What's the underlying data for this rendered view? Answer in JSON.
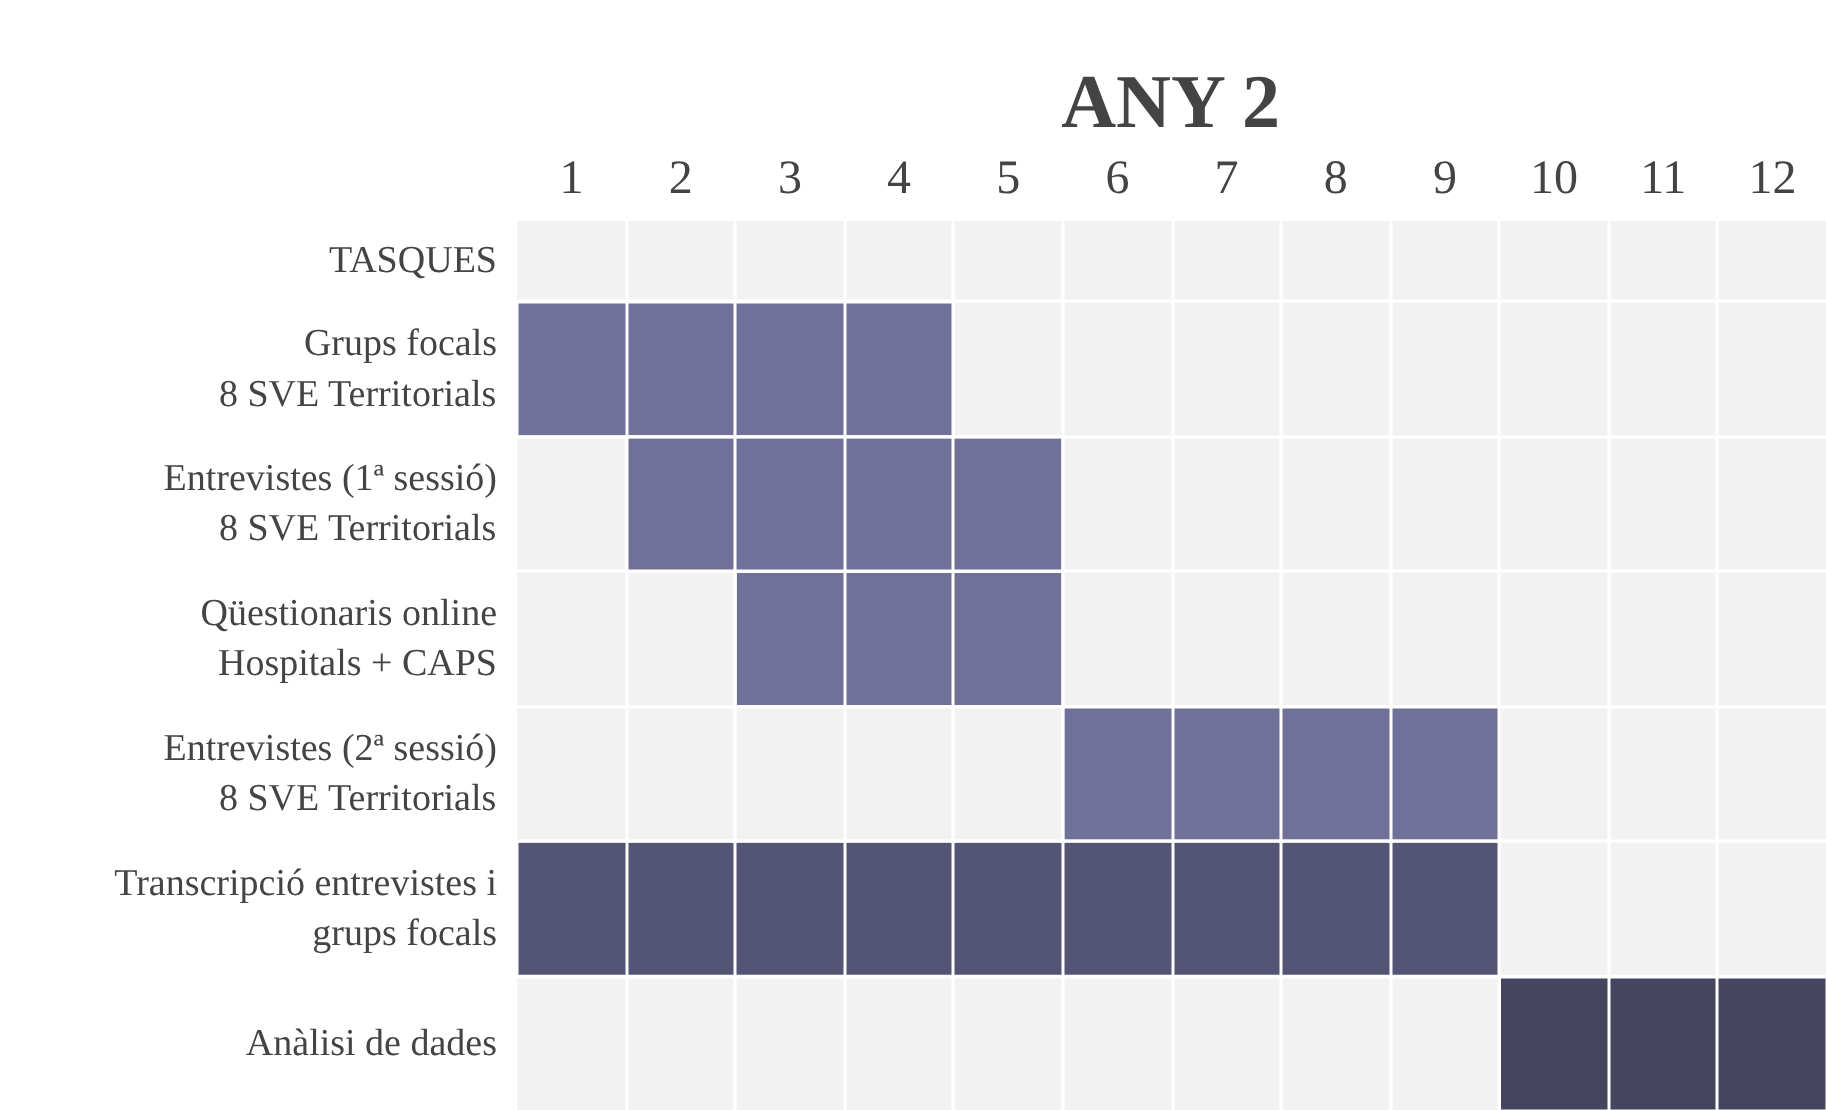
{
  "chart_data": {
    "type": "bar",
    "orientation": "horizontal",
    "title": "ANY 2",
    "ylabel": "TASQUES",
    "categories": [
      "Grups focals\n8 SVE Territorials",
      "Entrevistes (1ª sessió)\n8 SVE Territorials",
      "Qüestionaris online\nHospitals + CAPS",
      "Entrevistes (2ª sessió)\n8 SVE Territorials",
      "Transcripció entrevistes i\ngrups focals",
      "Anàlisi de dades"
    ],
    "base": [
      0,
      1,
      2,
      5,
      0,
      9
    ],
    "values": [
      4,
      4,
      3,
      4,
      9,
      3
    ],
    "colors": [
      "#6f7199",
      "#6f7199",
      "#6f7199",
      "#6f7199",
      "#545475",
      "#45455f"
    ],
    "xlim": [
      0,
      12
    ],
    "xticks": [
      {
        "value": 0.5,
        "label": "1"
      },
      {
        "value": 1.5,
        "label": "2"
      },
      {
        "value": 2.5,
        "label": "3"
      },
      {
        "value": 3.5,
        "label": "4"
      },
      {
        "value": 4.5,
        "label": "5"
      },
      {
        "value": 5.5,
        "label": "6"
      },
      {
        "value": 6.5,
        "label": "7"
      },
      {
        "value": 7.5,
        "label": "8"
      },
      {
        "value": 8.5,
        "label": "9"
      },
      {
        "value": 9.5,
        "label": "10"
      },
      {
        "value": 10.5,
        "label": "11"
      },
      {
        "value": 11.5,
        "label": "12"
      }
    ],
    "grid": true
  }
}
